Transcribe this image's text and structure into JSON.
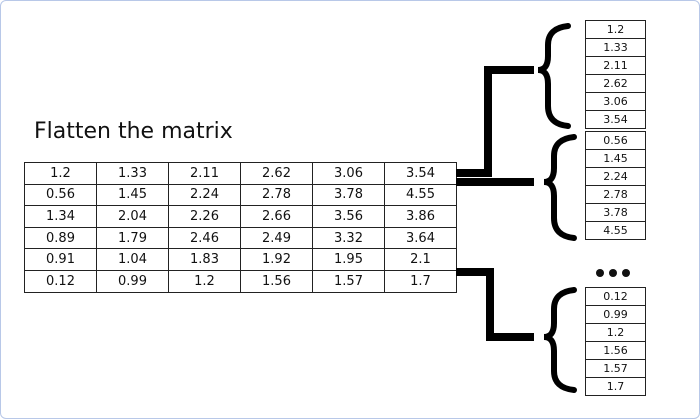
{
  "title": "Flatten the matrix",
  "matrix": [
    [
      "1.2",
      "1.33",
      "2.11",
      "2.62",
      "3.06",
      "3.54"
    ],
    [
      "0.56",
      "1.45",
      "2.24",
      "2.78",
      "3.78",
      "4.55"
    ],
    [
      "1.34",
      "2.04",
      "2.26",
      "2.66",
      "3.56",
      "3.86"
    ],
    [
      "0.89",
      "1.79",
      "2.46",
      "2.49",
      "3.32",
      "3.64"
    ],
    [
      "0.91",
      "1.04",
      "1.83",
      "1.92",
      "1.95",
      "2.1"
    ],
    [
      "0.12",
      "0.99",
      "1.2",
      "1.56",
      "1.57",
      "1.7"
    ]
  ],
  "flattened_columns": [
    [
      "1.2",
      "1.33",
      "2.11",
      "2.62",
      "3.06",
      "3.54"
    ],
    [
      "0.56",
      "1.45",
      "2.24",
      "2.78",
      "3.78",
      "4.55"
    ],
    [
      "0.12",
      "0.99",
      "1.2",
      "1.56",
      "1.57",
      "1.7"
    ]
  ],
  "colors": {
    "line": "#000000",
    "frame_border": "#b8c8e8"
  }
}
